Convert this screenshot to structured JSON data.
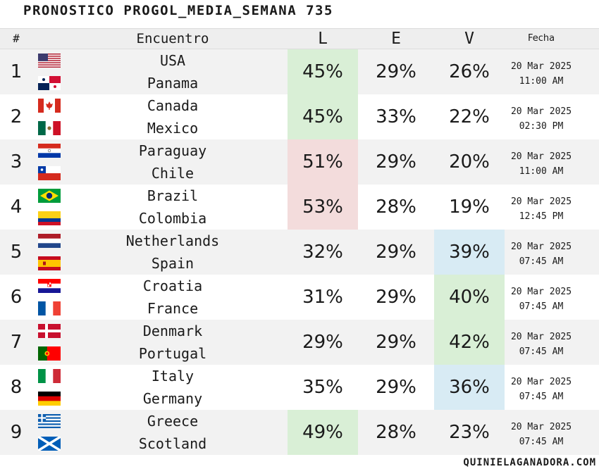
{
  "title": "PRONOSTICO PROGOL_MEDIA_SEMANA 735",
  "header": {
    "num": "#",
    "encuentro": "Encuentro",
    "l": "L",
    "e": "E",
    "v": "V",
    "fecha": "Fecha"
  },
  "matches": [
    {
      "num": "1",
      "home": "USA",
      "away": "Panama",
      "home_flag": "usa-flag",
      "away_flag": "panama-flag",
      "L": "45%",
      "E": "29%",
      "V": "26%",
      "highlight": "L",
      "highlight_color": "#d9efd6",
      "date": "20 Mar 2025",
      "time": "11:00 AM"
    },
    {
      "num": "2",
      "home": "Canada",
      "away": "Mexico",
      "home_flag": "canada-flag",
      "away_flag": "mexico-flag",
      "L": "45%",
      "E": "33%",
      "V": "22%",
      "highlight": "L",
      "highlight_color": "#d9efd6",
      "date": "20 Mar 2025",
      "time": "02:30 PM"
    },
    {
      "num": "3",
      "home": "Paraguay",
      "away": "Chile",
      "home_flag": "paraguay-flag",
      "away_flag": "chile-flag",
      "L": "51%",
      "E": "29%",
      "V": "20%",
      "highlight": "L",
      "highlight_color": "#f3dcdc",
      "date": "20 Mar 2025",
      "time": "11:00 AM"
    },
    {
      "num": "4",
      "home": "Brazil",
      "away": "Colombia",
      "home_flag": "brazil-flag",
      "away_flag": "colombia-flag",
      "L": "53%",
      "E": "28%",
      "V": "19%",
      "highlight": "L",
      "highlight_color": "#f3dcdc",
      "date": "20 Mar 2025",
      "time": "12:45 PM"
    },
    {
      "num": "5",
      "home": "Netherlands",
      "away": "Spain",
      "home_flag": "netherlands-flag",
      "away_flag": "spain-flag",
      "L": "32%",
      "E": "29%",
      "V": "39%",
      "highlight": "V",
      "highlight_color": "#d8ebf4",
      "date": "20 Mar 2025",
      "time": "07:45 AM"
    },
    {
      "num": "6",
      "home": "Croatia",
      "away": "France",
      "home_flag": "croatia-flag",
      "away_flag": "france-flag",
      "L": "31%",
      "E": "29%",
      "V": "40%",
      "highlight": "V",
      "highlight_color": "#d9efd6",
      "date": "20 Mar 2025",
      "time": "07:45 AM"
    },
    {
      "num": "7",
      "home": "Denmark",
      "away": "Portugal",
      "home_flag": "denmark-flag",
      "away_flag": "portugal-flag",
      "L": "29%",
      "E": "29%",
      "V": "42%",
      "highlight": "V",
      "highlight_color": "#d9efd6",
      "date": "20 Mar 2025",
      "time": "07:45 AM"
    },
    {
      "num": "8",
      "home": "Italy",
      "away": "Germany",
      "home_flag": "italy-flag",
      "away_flag": "germany-flag",
      "L": "35%",
      "E": "29%",
      "V": "36%",
      "highlight": "V",
      "highlight_color": "#d8ebf4",
      "date": "20 Mar 2025",
      "time": "07:45 AM"
    },
    {
      "num": "9",
      "home": "Greece",
      "away": "Scotland",
      "home_flag": "greece-flag",
      "away_flag": "scotland-flag",
      "L": "49%",
      "E": "28%",
      "V": "23%",
      "highlight": "L",
      "highlight_color": "#d9efd6",
      "date": "20 Mar 2025",
      "time": "07:45 AM"
    }
  ],
  "footer": "QUINIELAGANADORA.COM"
}
